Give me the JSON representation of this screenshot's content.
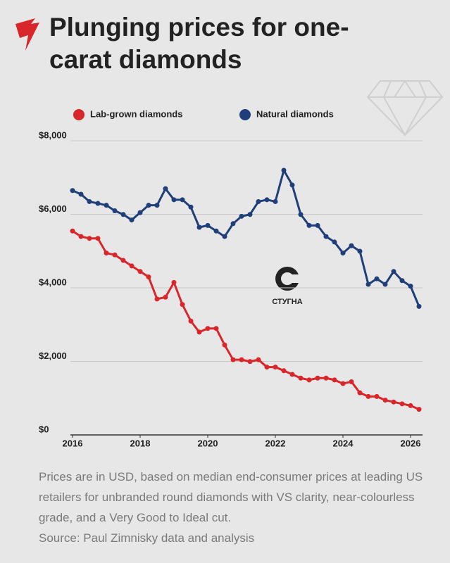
{
  "chart_data": {
    "type": "line",
    "title": "Plunging prices for one-carat diamonds",
    "note": "Prices are in USD, based on median end-consumer prices at leading US retailers for unbranded round diamonds with VS clarity, near-colourless grade, and a Very Good to Ideal cut.",
    "source": "Source: Paul Zimnisky data and analysis",
    "watermark": "СТУГНА",
    "x": [
      2016,
      2016.25,
      2016.5,
      2016.75,
      2017,
      2017.25,
      2017.5,
      2017.75,
      2018,
      2018.25,
      2018.5,
      2018.75,
      2019,
      2019.25,
      2019.5,
      2019.75,
      2020,
      2020.25,
      2020.5,
      2020.75,
      2021,
      2021.25,
      2021.5,
      2021.75,
      2022,
      2022.25,
      2022.5,
      2022.75,
      2023,
      2023.25,
      2023.5,
      2023.75,
      2024,
      2024.25,
      2024.5,
      2024.75,
      2025,
      2025.25,
      2025.5,
      2025.75,
      2026,
      2026.25
    ],
    "series": [
      {
        "name": "Lab-grown diamonds",
        "color": "#d9262a",
        "values": [
          5450,
          5300,
          5250,
          5250,
          4850,
          4800,
          4650,
          4500,
          4350,
          4200,
          3600,
          3650,
          4050,
          3450,
          3000,
          2700,
          2800,
          2800,
          2350,
          1950,
          1950,
          1900,
          1950,
          1750,
          1750,
          1650,
          1550,
          1450,
          1400,
          1450,
          1450,
          1400,
          1300,
          1350,
          1050,
          950,
          950,
          850,
          800,
          750,
          700,
          600
        ]
      },
      {
        "name": "Natural diamonds",
        "color": "#1f3f7a",
        "values": [
          6550,
          6450,
          6250,
          6200,
          6150,
          6000,
          5900,
          5750,
          5950,
          6150,
          6150,
          6600,
          6300,
          6300,
          6100,
          5550,
          5600,
          5450,
          5300,
          5650,
          5850,
          5900,
          6250,
          6300,
          6250,
          7100,
          6700,
          5900,
          5600,
          5600,
          5300,
          5150,
          4850,
          5050,
          4900,
          4000,
          4150,
          4000,
          4350,
          4100,
          3950,
          3400
        ]
      }
    ],
    "xlim": [
      2016,
      2026.5
    ],
    "xticks": [
      2016,
      2018,
      2020,
      2022,
      2024,
      2026
    ],
    "ylim": [
      0,
      8000
    ],
    "yticks": [
      {
        "value": 0,
        "label": "$0"
      },
      {
        "value": 2000,
        "label": "$2,000"
      },
      {
        "value": 4000,
        "label": "$4,000"
      },
      {
        "value": 6000,
        "label": "$6,000"
      },
      {
        "value": 8000,
        "label": "$8,000"
      }
    ],
    "grid": true
  }
}
